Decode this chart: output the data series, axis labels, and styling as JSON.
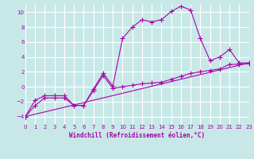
{
  "background_color": "#c8e8e8",
  "grid_color": "#ffffff",
  "line_color": "#aa00aa",
  "xlabel": "Windchill (Refroidissement éolien,°C)",
  "xlim": [
    0,
    23
  ],
  "ylim": [
    -5,
    11
  ],
  "yticks": [
    -4,
    -2,
    0,
    2,
    4,
    6,
    8,
    10
  ],
  "xticks": [
    0,
    1,
    2,
    3,
    4,
    5,
    6,
    7,
    8,
    9,
    10,
    11,
    12,
    13,
    14,
    15,
    16,
    17,
    18,
    19,
    20,
    21,
    22,
    23
  ],
  "line1_x": [
    0,
    1,
    2,
    3,
    4,
    5,
    6,
    7,
    8,
    9,
    10,
    11,
    12,
    13,
    14,
    15,
    16,
    17,
    18,
    19,
    20,
    21,
    22,
    23
  ],
  "line1_y": [
    -4,
    -2.5,
    -1.5,
    -1.5,
    -1.5,
    -2.5,
    -2.5,
    -0.5,
    1.5,
    -0.2,
    0.0,
    0.2,
    0.4,
    0.5,
    0.6,
    1.0,
    1.4,
    1.8,
    2.0,
    2.2,
    2.4,
    3.0,
    3.0,
    3.1
  ],
  "line2_x": [
    0,
    1,
    2,
    3,
    4,
    5,
    6,
    7,
    8,
    9,
    10,
    11,
    12,
    13,
    14,
    15,
    16,
    17,
    18,
    19,
    20,
    21,
    22,
    23
  ],
  "line2_y": [
    -4,
    -1.8,
    -1.2,
    -1.2,
    -1.2,
    -2.5,
    -2.5,
    -0.3,
    1.8,
    0.1,
    6.5,
    8.0,
    9.0,
    8.7,
    9.0,
    10.1,
    10.8,
    10.3,
    6.5,
    3.5,
    4.0,
    5.0,
    3.2,
    3.2
  ],
  "line3_x": [
    0,
    23
  ],
  "line3_y": [
    -4,
    3.2
  ]
}
